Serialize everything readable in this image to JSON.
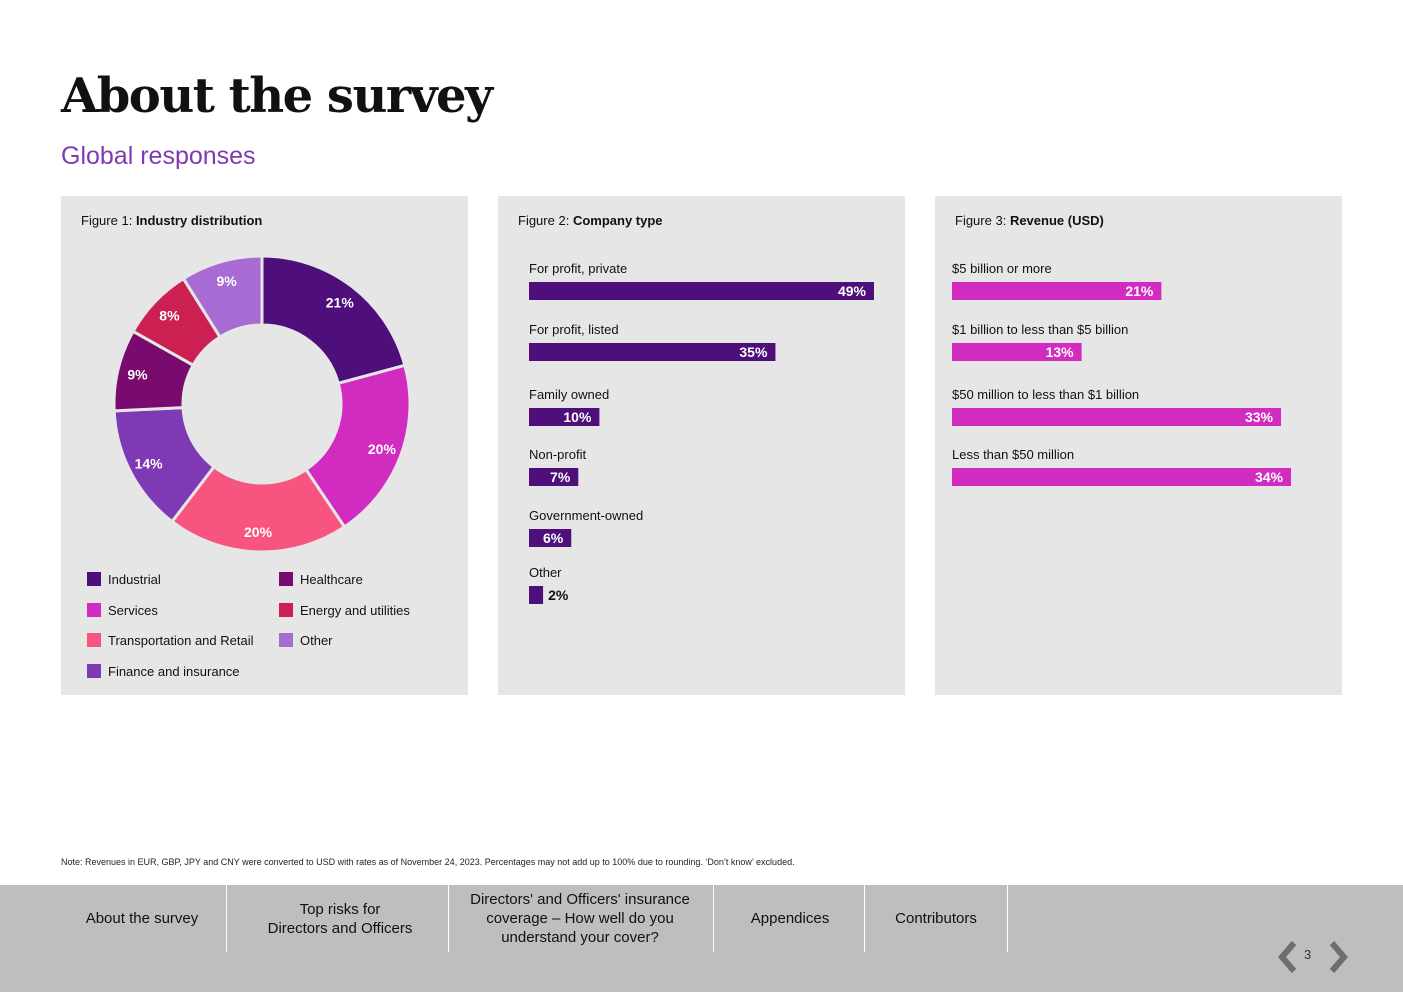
{
  "page": {
    "title": "About the survey",
    "subtitle": "Global responses"
  },
  "colors": {
    "accent_purple": "#7e3ab4",
    "dark_purple": "#4e0f7a",
    "magenta": "#d22bc0",
    "panel": "#e6e6e6"
  },
  "figures": [
    {
      "prefix": "Figure 1:",
      "name": "Industry distribution"
    },
    {
      "prefix": "Figure 2:",
      "name": "Company type"
    },
    {
      "prefix": "Figure 3:",
      "name": "Revenue (USD)"
    }
  ],
  "chart_data": [
    {
      "type": "pie",
      "title": "Industry distribution",
      "categories": [
        "Industrial",
        "Services",
        "Transportation and Retail",
        "Finance and insurance",
        "Healthcare",
        "Energy and utilities",
        "Other"
      ],
      "values": [
        21,
        20,
        20,
        14,
        9,
        8,
        9
      ],
      "labels": [
        "21%",
        "20%",
        "20%",
        "14%",
        "9%",
        "8%",
        "9%"
      ],
      "colors": [
        "#4e0f7a",
        "#d22bc0",
        "#f7557f",
        "#7e3ab4",
        "#7a0b6e",
        "#cc1f52",
        "#a86ad3"
      ],
      "donut": true,
      "legend": "bottom"
    },
    {
      "type": "bar",
      "orientation": "horizontal",
      "title": "Company type",
      "categories": [
        "For profit, private",
        "For profit, listed",
        "Family owned",
        "Non-profit",
        "Government-owned",
        "Other"
      ],
      "values": [
        49,
        35,
        10,
        7,
        6,
        2
      ],
      "labels": [
        "49%",
        "35%",
        "10%",
        "7%",
        "6%",
        "2%"
      ],
      "color": "#4e0f7a"
    },
    {
      "type": "bar",
      "orientation": "horizontal",
      "title": "Revenue (USD)",
      "categories": [
        "$5 billion or more",
        "$1 billion to less than $5 billion",
        "$50 million to less than $1 billion",
        "Less than $50 million"
      ],
      "values": [
        21,
        13,
        33,
        34
      ],
      "labels": [
        "21%",
        "13%",
        "33%",
        "34%"
      ],
      "color": "#d22bc0"
    }
  ],
  "note": "Note: Revenues in EUR, GBP, JPY and CNY were converted to USD with rates as of November 24, 2023. Percentages may not add up to 100% due to rounding. ‘Don’t know’ excluded.",
  "nav": {
    "items": [
      "About the survey",
      "Top risks for\nDirectors and Officers",
      "Directors' and Officers' insurance\ncoverage – How well do you\nunderstand your cover?",
      "Appendices",
      "Contributors"
    ],
    "page_number": "3"
  }
}
